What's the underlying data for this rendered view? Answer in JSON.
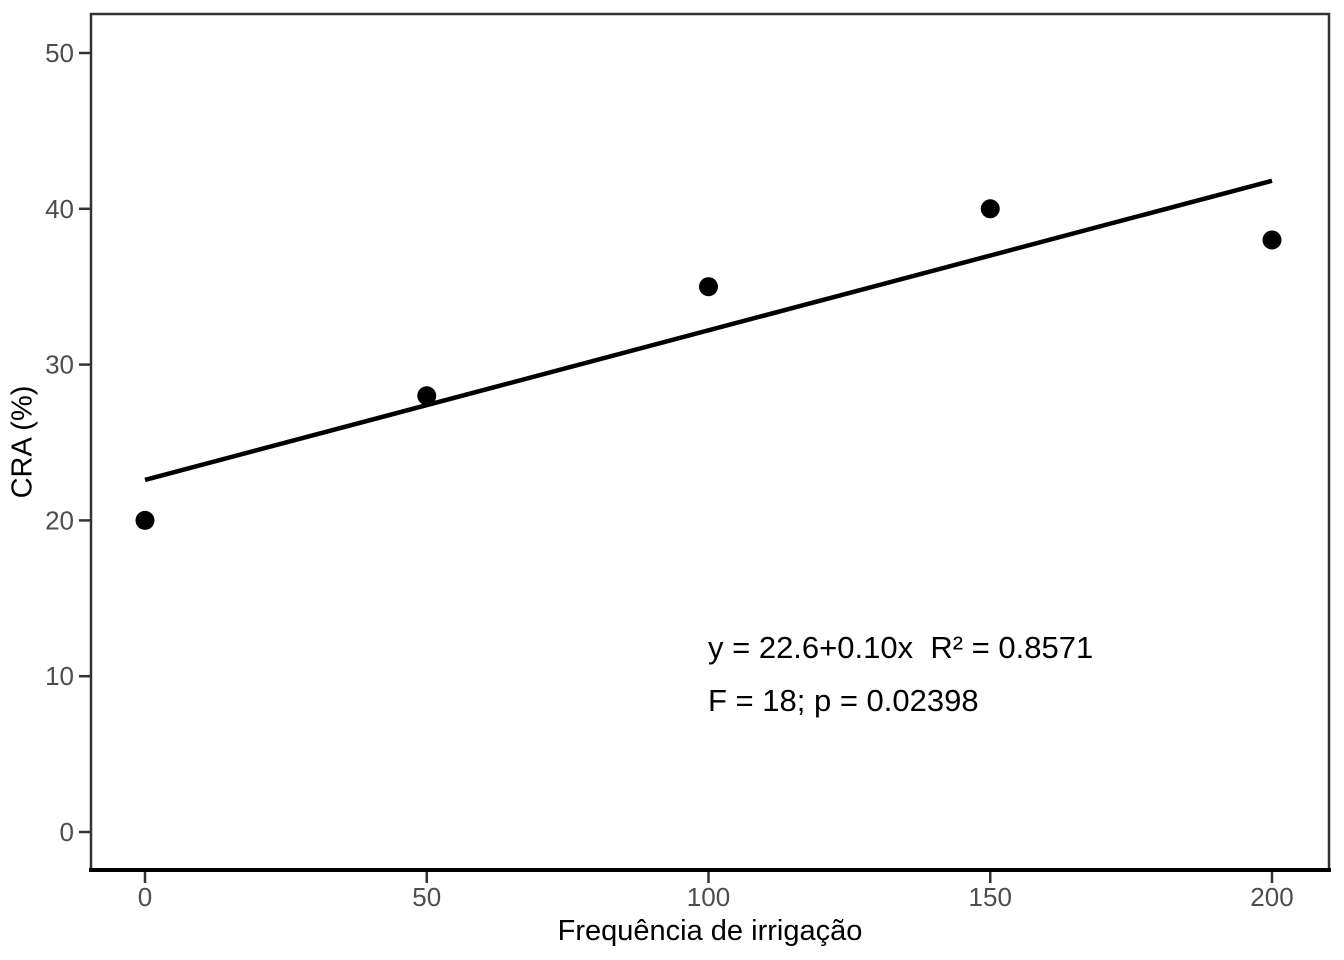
{
  "chart_data": {
    "type": "scatter",
    "title": "",
    "xlabel": "Frequência de irrigação",
    "ylabel": "CRA (%)",
    "xlim": [
      0,
      200
    ],
    "ylim": [
      0,
      50
    ],
    "x_ticks": [
      "0",
      "50",
      "100",
      "150",
      "200"
    ],
    "y_ticks": [
      "0",
      "10",
      "20",
      "30",
      "40",
      "50"
    ],
    "grid": false,
    "legend_position": "none",
    "points": [
      {
        "x": 0,
        "y": 20
      },
      {
        "x": 50,
        "y": 28
      },
      {
        "x": 100,
        "y": 35
      },
      {
        "x": 150,
        "y": 40
      },
      {
        "x": 200,
        "y": 38
      }
    ],
    "fit_line": {
      "intercept": 22.6,
      "slope": 0.096,
      "x_start": 0,
      "x_end": 200
    },
    "annotation": {
      "line1": "y = 22.6+0.10x  R² = 0.8571",
      "line2": "F = 18; p = 0.02398"
    },
    "colors": {
      "point": "#000000",
      "line": "#000000",
      "tick_label": "#4d4d4d",
      "axis_title": "#000000",
      "panel_border": "#333333",
      "axis_line": "#000000",
      "background": "#ffffff"
    }
  }
}
